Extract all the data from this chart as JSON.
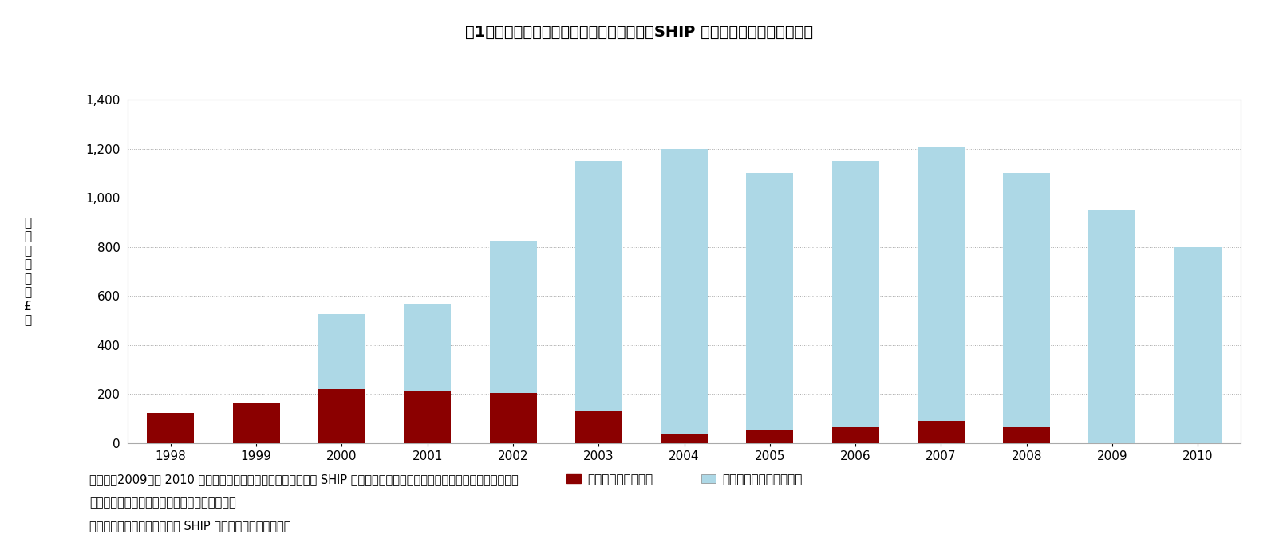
{
  "years": [
    1998,
    1999,
    2000,
    2001,
    2002,
    2003,
    2004,
    2005,
    2006,
    2007,
    2008,
    2009,
    2010
  ],
  "home_reversion": [
    125,
    165,
    220,
    210,
    205,
    130,
    35,
    55,
    65,
    90,
    65,
    0,
    0
  ],
  "lifetime_mortgage": [
    0,
    0,
    305,
    360,
    620,
    1020,
    1165,
    1045,
    1085,
    1120,
    1035,
    950,
    800
  ],
  "color_home_reversion": "#8B0000",
  "color_lifetime_mortgage": "#ADD8E6",
  "ylim": [
    0,
    1400
  ],
  "yticks": [
    0,
    200,
    400,
    600,
    800,
    1000,
    1200,
    1400
  ],
  "title": "図1　エクイティ・リリース融資額の推移（SHIP 加盟各社、金融危機前後）",
  "legend_home": "ホームリバージョン",
  "legend_lifetime": "ライフタイムモーゲージ",
  "ylabel_chars": [
    "融",
    "資",
    "額",
    "（",
    "百",
    "万",
    "£",
    "）"
  ],
  "note_line1": "（注）　2009年と 2010 年のホーム・リバージョンのデータは SHIP 情報では不明。同商品を取り扱う会員が減ったため、",
  "note_line2": "　　　データ収集を止めたものと判断される。",
  "note_line3": "（資料）国土交通省資料及び SHIP 関連資料に基づき作成。",
  "background_color": "#FFFFFF",
  "chart_bg_color": "#FFFFFF",
  "chart_border_color": "#AAAAAA",
  "bar_width": 0.55,
  "grid_color": "#AAAAAA",
  "grid_style": ":",
  "title_fontsize": 14,
  "axis_fontsize": 11,
  "legend_fontsize": 11,
  "note_fontsize": 10.5
}
